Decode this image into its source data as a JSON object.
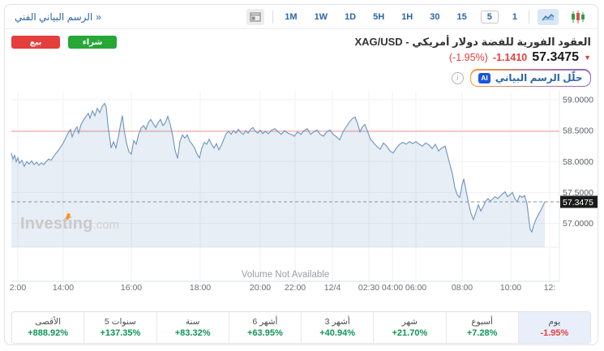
{
  "toolbar": {
    "chart_link": {
      "label": "الرسم البياني الفني",
      "arrow": "»"
    },
    "timeframes": [
      "1M",
      "1W",
      "1D",
      "5H",
      "1H",
      "30",
      "15",
      "5",
      "1"
    ],
    "selected_timeframe": "5"
  },
  "trade": {
    "sell_label": "بيع",
    "buy_label": "شراء"
  },
  "instrument": {
    "title": "XAG/USD - العقود الفورية للفضة دولار أمريكي",
    "price": "57.3475",
    "change": "-1.1410",
    "change_pct": "(-1.95%)",
    "direction": "down"
  },
  "ai": {
    "badge": "AI",
    "label": "حلّل الرسم البياني"
  },
  "colors": {
    "link_blue": "#2a66a8",
    "sell_red": "#e43e3d",
    "buy_green": "#27a737",
    "value_green": "#0f9456",
    "line_blue": "#6b94c0",
    "prev_close_pink": "#f4b8b6",
    "highlight_cell": "#e9effa"
  },
  "chart_data": {
    "type": "area",
    "instrument": "XAG/USD",
    "last_price": 57.3475,
    "last_price_label": "57.3475",
    "prev_close": 58.4885,
    "volume_note": "Volume Not Available",
    "watermark": {
      "main": "Investing",
      "suffix": ".com"
    },
    "y_ticks": [
      [
        "59.0000",
        59.0
      ],
      [
        "58.5000",
        58.5
      ],
      [
        "58.0000",
        58.0
      ],
      [
        "57.5000",
        57.5
      ],
      [
        "57.0000",
        57.0
      ]
    ],
    "x_ticks": [
      [
        "2:00",
        22
      ],
      [
        "14:00",
        78
      ],
      [
        "16:00",
        162
      ],
      [
        "18:00",
        247
      ],
      [
        "20:00",
        321
      ],
      [
        "22:00",
        364
      ],
      [
        "12/4",
        410
      ],
      [
        "02:30",
        455
      ],
      [
        "04:00",
        484
      ],
      [
        "06:00",
        513
      ],
      [
        "08:00",
        570
      ],
      [
        "10:00",
        630
      ],
      [
        "12:",
        678
      ]
    ],
    "points": [
      [
        14,
        58.14
      ],
      [
        16,
        58.04
      ],
      [
        18,
        58.1
      ],
      [
        20,
        58.0
      ],
      [
        22,
        58.06
      ],
      [
        24,
        57.97
      ],
      [
        27,
        58.02
      ],
      [
        30,
        57.92
      ],
      [
        33,
        58.0
      ],
      [
        36,
        57.96
      ],
      [
        39,
        58.01
      ],
      [
        42,
        57.95
      ],
      [
        45,
        57.99
      ],
      [
        48,
        57.94
      ],
      [
        51,
        57.98
      ],
      [
        54,
        57.95
      ],
      [
        57,
        58.0
      ],
      [
        60,
        58.04
      ],
      [
        63,
        58.02
      ],
      [
        66,
        58.08
      ],
      [
        69,
        58.13
      ],
      [
        72,
        58.18
      ],
      [
        75,
        58.24
      ],
      [
        78,
        58.3
      ],
      [
        81,
        58.38
      ],
      [
        84,
        58.46
      ],
      [
        87,
        58.52
      ],
      [
        89,
        58.4
      ],
      [
        92,
        58.5
      ],
      [
        95,
        58.56
      ],
      [
        97,
        58.46
      ],
      [
        100,
        58.6
      ],
      [
        103,
        58.67
      ],
      [
        106,
        58.73
      ],
      [
        109,
        58.78
      ],
      [
        111,
        58.7
      ],
      [
        114,
        58.82
      ],
      [
        117,
        58.74
      ],
      [
        120,
        58.86
      ],
      [
        123,
        58.79
      ],
      [
        126,
        58.89
      ],
      [
        129,
        58.94
      ],
      [
        131,
        58.88
      ],
      [
        133,
        58.6
      ],
      [
        135,
        58.42
      ],
      [
        137,
        58.22
      ],
      [
        140,
        58.32
      ],
      [
        143,
        58.22
      ],
      [
        146,
        58.4
      ],
      [
        149,
        58.62
      ],
      [
        151,
        58.74
      ],
      [
        153,
        58.52
      ],
      [
        156,
        58.3
      ],
      [
        159,
        58.16
      ],
      [
        162,
        58.12
      ],
      [
        165,
        58.34
      ],
      [
        168,
        58.28
      ],
      [
        171,
        58.44
      ],
      [
        174,
        58.54
      ],
      [
        177,
        58.58
      ],
      [
        180,
        58.52
      ],
      [
        183,
        58.63
      ],
      [
        186,
        58.68
      ],
      [
        189,
        58.61
      ],
      [
        192,
        58.55
      ],
      [
        195,
        58.63
      ],
      [
        198,
        58.68
      ],
      [
        201,
        58.58
      ],
      [
        204,
        58.63
      ],
      [
        207,
        58.73
      ],
      [
        210,
        58.6
      ],
      [
        213,
        58.42
      ],
      [
        216,
        58.18
      ],
      [
        219,
        58.05
      ],
      [
        222,
        58.33
      ],
      [
        225,
        58.43
      ],
      [
        228,
        58.38
      ],
      [
        231,
        58.43
      ],
      [
        234,
        58.33
      ],
      [
        237,
        58.28
      ],
      [
        240,
        58.22
      ],
      [
        243,
        58.12
      ],
      [
        246,
        58.06
      ],
      [
        249,
        58.22
      ],
      [
        252,
        58.31
      ],
      [
        255,
        58.28
      ],
      [
        258,
        58.36
      ],
      [
        261,
        58.28
      ],
      [
        264,
        58.22
      ],
      [
        267,
        58.29
      ],
      [
        270,
        58.19
      ],
      [
        273,
        58.26
      ],
      [
        276,
        58.36
      ],
      [
        279,
        58.45
      ],
      [
        282,
        58.49
      ],
      [
        285,
        58.44
      ],
      [
        288,
        58.5
      ],
      [
        291,
        58.46
      ],
      [
        294,
        58.52
      ],
      [
        297,
        58.47
      ],
      [
        300,
        58.44
      ],
      [
        303,
        58.5
      ],
      [
        306,
        58.46
      ],
      [
        309,
        58.52
      ],
      [
        312,
        58.55
      ],
      [
        315,
        58.49
      ],
      [
        318,
        58.46
      ],
      [
        321,
        58.51
      ],
      [
        324,
        58.45
      ],
      [
        327,
        58.49
      ],
      [
        331,
        58.45
      ],
      [
        335,
        58.51
      ],
      [
        339,
        58.53
      ],
      [
        343,
        58.48
      ],
      [
        347,
        58.44
      ],
      [
        351,
        58.5
      ],
      [
        355,
        58.46
      ],
      [
        359,
        58.44
      ],
      [
        363,
        58.41
      ],
      [
        367,
        58.48
      ],
      [
        371,
        58.44
      ],
      [
        375,
        58.5
      ],
      [
        379,
        58.53
      ],
      [
        383,
        58.44
      ],
      [
        387,
        58.48
      ],
      [
        391,
        58.51
      ],
      [
        395,
        58.44
      ],
      [
        399,
        58.41
      ],
      [
        403,
        58.48
      ],
      [
        407,
        58.51
      ],
      [
        411,
        58.44
      ],
      [
        415,
        58.4
      ],
      [
        419,
        58.35
      ],
      [
        423,
        58.48
      ],
      [
        427,
        58.56
      ],
      [
        431,
        58.64
      ],
      [
        435,
        58.7
      ],
      [
        438,
        58.72
      ],
      [
        441,
        58.62
      ],
      [
        444,
        58.48
      ],
      [
        447,
        58.56
      ],
      [
        450,
        58.6
      ],
      [
        453,
        58.5
      ],
      [
        457,
        58.36
      ],
      [
        461,
        58.3
      ],
      [
        465,
        58.24
      ],
      [
        469,
        58.2
      ],
      [
        473,
        58.3
      ],
      [
        477,
        58.25
      ],
      [
        481,
        58.17
      ],
      [
        485,
        58.14
      ],
      [
        489,
        58.22
      ],
      [
        493,
        58.28
      ],
      [
        497,
        58.31
      ],
      [
        501,
        58.28
      ],
      [
        505,
        58.32
      ],
      [
        509,
        58.29
      ],
      [
        513,
        58.32
      ],
      [
        517,
        58.28
      ],
      [
        521,
        58.25
      ],
      [
        525,
        58.3
      ],
      [
        529,
        58.27
      ],
      [
        533,
        58.21
      ],
      [
        537,
        58.28
      ],
      [
        541,
        58.17
      ],
      [
        545,
        58.22
      ],
      [
        549,
        58.25
      ],
      [
        552,
        58.1
      ],
      [
        555,
        57.95
      ],
      [
        558,
        57.8
      ],
      [
        561,
        57.58
      ],
      [
        564,
        57.46
      ],
      [
        567,
        57.42
      ],
      [
        570,
        57.62
      ],
      [
        572,
        57.72
      ],
      [
        575,
        57.52
      ],
      [
        578,
        57.32
      ],
      [
        581,
        57.16
      ],
      [
        584,
        57.06
      ],
      [
        587,
        57.18
      ],
      [
        590,
        57.3
      ],
      [
        593,
        57.2
      ],
      [
        596,
        57.27
      ],
      [
        599,
        57.36
      ],
      [
        602,
        57.4
      ],
      [
        605,
        57.36
      ],
      [
        608,
        57.4
      ],
      [
        611,
        57.43
      ],
      [
        614,
        57.4
      ],
      [
        617,
        57.44
      ],
      [
        620,
        57.48
      ],
      [
        623,
        57.51
      ],
      [
        626,
        57.43
      ],
      [
        629,
        57.46
      ],
      [
        632,
        57.5
      ],
      [
        635,
        57.4
      ],
      [
        638,
        57.35
      ],
      [
        641,
        57.45
      ],
      [
        644,
        57.42
      ],
      [
        647,
        57.45
      ],
      [
        650,
        57.32
      ],
      [
        652,
        57.1
      ],
      [
        654,
        56.9
      ],
      [
        656,
        56.86
      ],
      [
        658,
        56.96
      ],
      [
        661,
        57.06
      ],
      [
        664,
        57.14
      ],
      [
        667,
        57.21
      ],
      [
        670,
        57.29
      ],
      [
        672,
        57.35
      ]
    ]
  },
  "performance": {
    "cells": [
      {
        "label": "الأقصى",
        "value": "+888.92%"
      },
      {
        "label": "5 سنوات",
        "value": "+137.35%"
      },
      {
        "label": "سنة",
        "value": "+83.32%"
      },
      {
        "label": "6 أشهر",
        "value": "+63.95%"
      },
      {
        "label": "3 أشهر",
        "value": "+40.94%"
      },
      {
        "label": "شهر",
        "value": "+21.70%"
      },
      {
        "label": "أسبوع",
        "value": "+7.28%"
      },
      {
        "label": "يوم",
        "value": "-1.95%",
        "negative": true,
        "highlight": true
      }
    ]
  }
}
